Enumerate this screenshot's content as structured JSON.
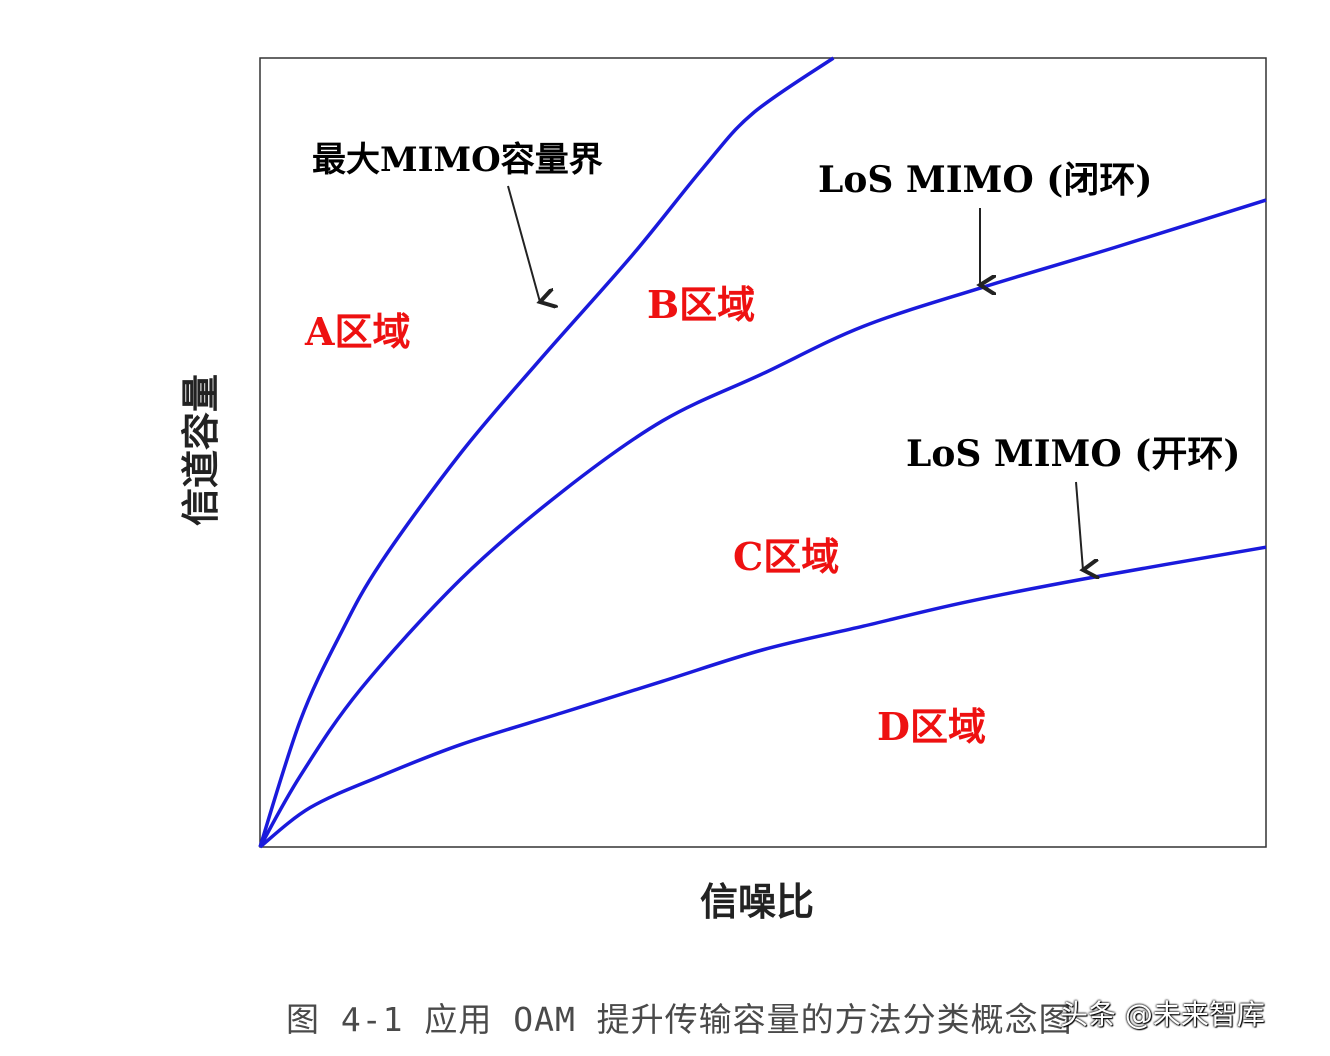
{
  "chart_data": {
    "type": "line",
    "xlabel": "信噪比",
    "ylabel": "信道容量",
    "grid": false,
    "axis_ticks": false,
    "series": [
      {
        "name": "最大MIMO容量界",
        "color": "#1a1adc",
        "x": [
          0,
          0.04,
          0.08,
          0.12,
          0.2,
          0.28,
          0.37,
          0.44,
          0.49,
          0.57
        ],
        "y": [
          0,
          0.16,
          0.27,
          0.36,
          0.5,
          0.62,
          0.75,
          0.86,
          0.93,
          1.0
        ]
      },
      {
        "name": "LoS MIMO (闭环)",
        "color": "#1a1adc",
        "x": [
          0,
          0.04,
          0.1,
          0.2,
          0.3,
          0.4,
          0.5,
          0.6,
          0.72,
          0.85,
          1.0
        ],
        "y": [
          0,
          0.09,
          0.2,
          0.34,
          0.45,
          0.54,
          0.6,
          0.66,
          0.71,
          0.76,
          0.82
        ]
      },
      {
        "name": "LoS MIMO (开环)",
        "color": "#1a1adc",
        "x": [
          0,
          0.05,
          0.12,
          0.2,
          0.3,
          0.4,
          0.5,
          0.6,
          0.7,
          0.82,
          1.0
        ],
        "y": [
          0,
          0.05,
          0.09,
          0.13,
          0.17,
          0.21,
          0.25,
          0.28,
          0.31,
          0.34,
          0.38
        ]
      }
    ],
    "annotations": [
      {
        "text": "最大MIMO容量界",
        "color": "#000000"
      },
      {
        "text": "LoS MIMO (闭环)",
        "color": "#000000"
      },
      {
        "text": "LoS MIMO (开环)",
        "color": "#000000"
      }
    ],
    "regions": [
      {
        "text": "A区域",
        "color": "#ee1111"
      },
      {
        "text": "B区域",
        "color": "#ee1111"
      },
      {
        "text": "C区域",
        "color": "#ee1111"
      },
      {
        "text": "D区域",
        "color": "#ee1111"
      }
    ]
  },
  "caption": "图 4-1 应用 OAM 提升传输容量的方法分类概念图",
  "watermark": "头条 @未来智库"
}
